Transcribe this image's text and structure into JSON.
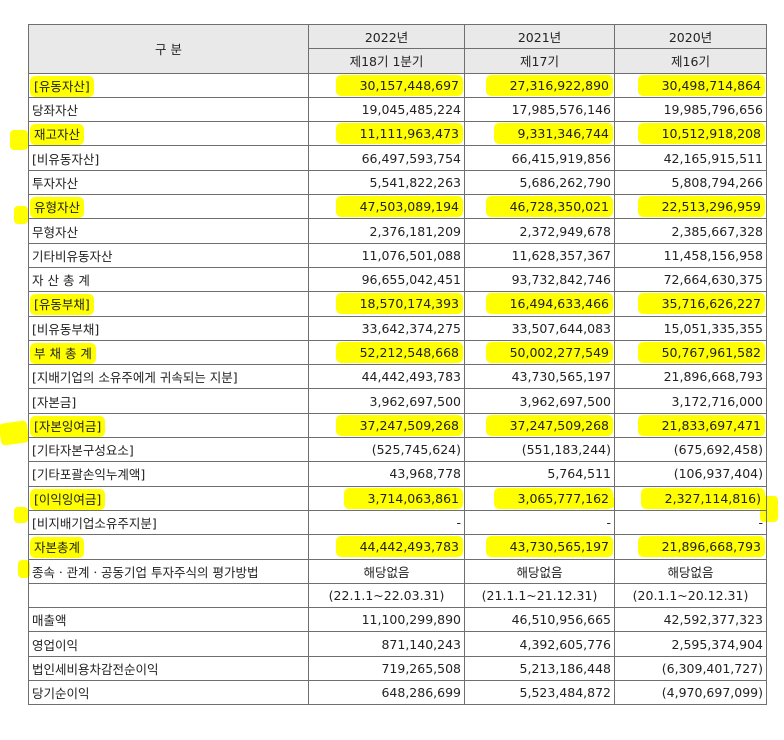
{
  "header": {
    "section_label": "구 분",
    "years": [
      "2022년",
      "2021년",
      "2020년"
    ],
    "periods": [
      "제18기 1분기",
      "제17기",
      "제16기"
    ]
  },
  "rows": [
    {
      "label": "[유동자산]",
      "v": [
        "30,157,448,697",
        "27,316,922,890",
        "30,498,714,864"
      ],
      "hl_label": true,
      "hl": [
        true,
        true,
        true
      ]
    },
    {
      "label": "당좌자산",
      "v": [
        "19,045,485,224",
        "17,985,576,146",
        "19,985,796,656"
      ],
      "hl_label": false,
      "hl": [
        false,
        false,
        false
      ]
    },
    {
      "label": "재고자산",
      "v": [
        "11,111,963,473",
        "9,331,346,744",
        "10,512,918,208"
      ],
      "hl_label": true,
      "hl": [
        true,
        true,
        true
      ]
    },
    {
      "label": "[비유동자산]",
      "v": [
        "66,497,593,754",
        "66,415,919,856",
        "42,165,915,511"
      ],
      "hl_label": false,
      "hl": [
        false,
        false,
        false
      ]
    },
    {
      "label": "투자자산",
      "v": [
        "5,541,822,263",
        "5,686,262,790",
        "5,808,794,266"
      ],
      "hl_label": false,
      "hl": [
        false,
        false,
        false
      ]
    },
    {
      "label": "유형자산",
      "v": [
        "47,503,089,194",
        "46,728,350,021",
        "22,513,296,959"
      ],
      "hl_label": true,
      "hl": [
        true,
        true,
        true
      ]
    },
    {
      "label": "무형자산",
      "v": [
        "2,376,181,209",
        "2,372,949,678",
        "2,385,667,328"
      ],
      "hl_label": false,
      "hl": [
        false,
        false,
        false
      ]
    },
    {
      "label": "기타비유동자산",
      "v": [
        "11,076,501,088",
        "11,628,357,367",
        "11,458,156,958"
      ],
      "hl_label": false,
      "hl": [
        false,
        false,
        false
      ]
    },
    {
      "label": "자 산 총 계",
      "v": [
        "96,655,042,451",
        "93,732,842,746",
        "72,664,630,375"
      ],
      "hl_label": false,
      "hl": [
        false,
        false,
        false
      ]
    },
    {
      "label": "[유동부채]",
      "v": [
        "18,570,174,393",
        "16,494,633,466",
        "35,716,626,227"
      ],
      "hl_label": true,
      "hl": [
        true,
        true,
        true
      ]
    },
    {
      "label": "[비유동부채]",
      "v": [
        "33,642,374,275",
        "33,507,644,083",
        "15,051,335,355"
      ],
      "hl_label": false,
      "hl": [
        false,
        false,
        false
      ]
    },
    {
      "label": "부 채 총 계",
      "v": [
        "52,212,548,668",
        "50,002,277,549",
        "50,767,961,582"
      ],
      "hl_label": true,
      "hl": [
        true,
        true,
        true
      ]
    },
    {
      "label": "[지배기업의 소유주에게 귀속되는 지분]",
      "v": [
        "44,442,493,783",
        "43,730,565,197",
        "21,896,668,793"
      ],
      "hl_label": false,
      "hl": [
        false,
        false,
        false
      ]
    },
    {
      "label": "[자본금]",
      "v": [
        "3,962,697,500",
        "3,962,697,500",
        "3,172,716,000"
      ],
      "hl_label": false,
      "hl": [
        false,
        false,
        false
      ]
    },
    {
      "label": "[자본잉여금]",
      "v": [
        "37,247,509,268",
        "37,247,509,268",
        "21,833,697,471"
      ],
      "hl_label": true,
      "hl": [
        true,
        true,
        true
      ]
    },
    {
      "label": "[기타자본구성요소]",
      "v": [
        "(525,745,624)",
        "(551,183,244)",
        "(675,692,458)"
      ],
      "hl_label": false,
      "hl": [
        false,
        false,
        false
      ]
    },
    {
      "label": "[기타포괄손익누계액]",
      "v": [
        "43,968,778",
        "5,764,511",
        "(106,937,404)"
      ],
      "hl_label": false,
      "hl": [
        false,
        false,
        false
      ]
    },
    {
      "label": "[이익잉여금]",
      "v": [
        "3,714,063,861",
        "3,065,777,162",
        "2,327,114,816)"
      ],
      "hl_label": true,
      "hl": [
        true,
        true,
        true
      ]
    },
    {
      "label": "[비지배기업소유주지분]",
      "v": [
        "-",
        "-",
        "-"
      ],
      "hl_label": false,
      "hl": [
        false,
        false,
        false
      ]
    },
    {
      "label": "자본총계",
      "v": [
        "44,442,493,783",
        "43,730,565,197",
        "21,896,668,793"
      ],
      "hl_label": true,
      "hl": [
        true,
        true,
        true
      ]
    },
    {
      "label": "종속ㆍ관계ㆍ공동기업 투자주식의 평가방법",
      "v": [
        "해당없음",
        "해당없음",
        "해당없음"
      ],
      "hl_label": false,
      "hl": [
        false,
        false,
        false
      ]
    },
    {
      "label": "",
      "v": [
        "(22.1.1~22.03.31)",
        "(21.1.1~21.12.31)",
        "(20.1.1~20.12.31)"
      ],
      "hl_label": false,
      "hl": [
        false,
        false,
        false
      ]
    },
    {
      "label": "매출액",
      "v": [
        "11,100,299,890",
        "46,510,956,665",
        "42,592,377,323"
      ],
      "hl_label": false,
      "hl": [
        false,
        false,
        false
      ]
    },
    {
      "label": "영업이익",
      "v": [
        "871,140,243",
        "4,392,605,776",
        "2,595,374,904"
      ],
      "hl_label": false,
      "hl": [
        false,
        false,
        false
      ]
    },
    {
      "label": "법인세비용차감전순이익",
      "v": [
        "719,265,508",
        "5,213,186,448",
        "(6,309,401,727)"
      ],
      "hl_label": false,
      "hl": [
        false,
        false,
        false
      ]
    },
    {
      "label": "당기순이익",
      "v": [
        "648,286,699",
        "5,523,484,872",
        "(4,970,697,099)"
      ],
      "hl_label": false,
      "hl": [
        false,
        false,
        false
      ]
    }
  ],
  "colors": {
    "highlight": "#ffff00",
    "header_bg": "#e9e9e9",
    "border": "#6f6f6f"
  }
}
